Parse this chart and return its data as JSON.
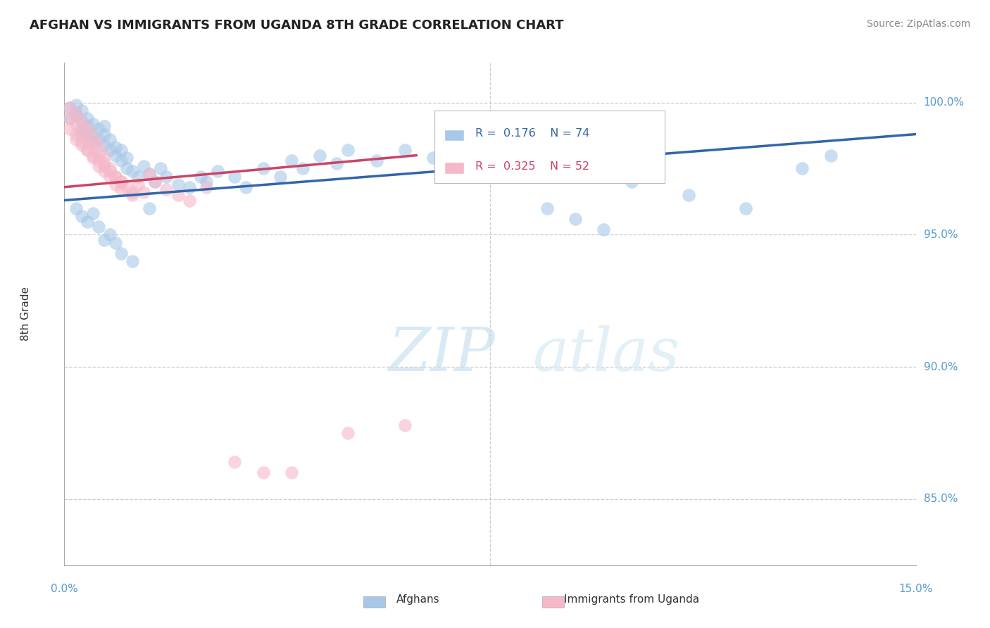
{
  "title": "AFGHAN VS IMMIGRANTS FROM UGANDA 8TH GRADE CORRELATION CHART",
  "source_text": "Source: ZipAtlas.com",
  "ylabel": "8th Grade",
  "xlim": [
    0.0,
    0.15
  ],
  "ylim": [
    0.825,
    1.015
  ],
  "ytick_positions": [
    0.85,
    0.9,
    0.95,
    1.0
  ],
  "ytick_labels": [
    "85.0%",
    "90.0%",
    "95.0%",
    "100.0%"
  ],
  "watermark_zip": "ZIP",
  "watermark_atlas": "atlas",
  "color_blue": "#a8c8e8",
  "color_pink": "#f5b8c8",
  "line_color_blue": "#3366aa",
  "line_color_pink": "#cc4466",
  "blue_line_x": [
    0.0,
    0.15
  ],
  "blue_line_y": [
    0.963,
    0.988
  ],
  "pink_line_x": [
    0.0,
    0.062
  ],
  "pink_line_y": [
    0.968,
    0.98
  ],
  "blue_scatter_x": [
    0.001,
    0.001,
    0.002,
    0.002,
    0.002,
    0.003,
    0.003,
    0.003,
    0.003,
    0.004,
    0.004,
    0.004,
    0.005,
    0.005,
    0.005,
    0.006,
    0.006,
    0.007,
    0.007,
    0.007,
    0.008,
    0.008,
    0.009,
    0.009,
    0.01,
    0.01,
    0.011,
    0.011,
    0.012,
    0.013,
    0.014,
    0.015,
    0.016,
    0.017,
    0.018,
    0.02,
    0.022,
    0.024,
    0.025,
    0.027,
    0.03,
    0.032,
    0.035,
    0.038,
    0.04,
    0.042,
    0.045,
    0.048,
    0.05,
    0.055,
    0.06,
    0.065,
    0.07,
    0.075,
    0.08,
    0.085,
    0.09,
    0.095,
    0.1,
    0.11,
    0.12,
    0.13,
    0.135,
    0.002,
    0.003,
    0.004,
    0.005,
    0.006,
    0.007,
    0.008,
    0.009,
    0.01,
    0.012,
    0.015
  ],
  "blue_scatter_y": [
    0.994,
    0.998,
    0.996,
    0.999,
    0.995,
    0.99,
    0.993,
    0.997,
    0.988,
    0.991,
    0.994,
    0.987,
    0.988,
    0.992,
    0.985,
    0.986,
    0.99,
    0.984,
    0.988,
    0.991,
    0.982,
    0.986,
    0.98,
    0.983,
    0.978,
    0.982,
    0.979,
    0.975,
    0.974,
    0.972,
    0.976,
    0.973,
    0.97,
    0.975,
    0.972,
    0.969,
    0.968,
    0.972,
    0.97,
    0.974,
    0.972,
    0.968,
    0.975,
    0.972,
    0.978,
    0.975,
    0.98,
    0.977,
    0.982,
    0.978,
    0.982,
    0.979,
    0.984,
    0.981,
    0.985,
    0.96,
    0.956,
    0.952,
    0.97,
    0.965,
    0.96,
    0.975,
    0.98,
    0.96,
    0.957,
    0.955,
    0.958,
    0.953,
    0.948,
    0.95,
    0.947,
    0.943,
    0.94,
    0.96
  ],
  "pink_scatter_x": [
    0.001,
    0.001,
    0.001,
    0.002,
    0.002,
    0.002,
    0.003,
    0.003,
    0.003,
    0.004,
    0.004,
    0.004,
    0.005,
    0.005,
    0.005,
    0.006,
    0.006,
    0.006,
    0.007,
    0.007,
    0.007,
    0.008,
    0.008,
    0.009,
    0.009,
    0.01,
    0.01,
    0.011,
    0.012,
    0.013,
    0.014,
    0.015,
    0.016,
    0.018,
    0.02,
    0.022,
    0.025,
    0.03,
    0.035,
    0.04,
    0.05,
    0.06,
    0.002,
    0.003,
    0.004,
    0.005,
    0.006,
    0.007,
    0.008,
    0.009,
    0.01,
    0.012
  ],
  "pink_scatter_y": [
    0.998,
    0.994,
    0.99,
    0.996,
    0.992,
    0.988,
    0.993,
    0.989,
    0.985,
    0.99,
    0.986,
    0.982,
    0.987,
    0.983,
    0.979,
    0.984,
    0.98,
    0.976,
    0.98,
    0.977,
    0.974,
    0.975,
    0.972,
    0.972,
    0.969,
    0.97,
    0.967,
    0.968,
    0.965,
    0.969,
    0.966,
    0.973,
    0.97,
    0.967,
    0.965,
    0.963,
    0.968,
    0.864,
    0.86,
    0.86,
    0.875,
    0.878,
    0.986,
    0.984,
    0.982,
    0.98,
    0.978,
    0.976,
    0.974,
    0.972,
    0.97,
    0.966
  ]
}
